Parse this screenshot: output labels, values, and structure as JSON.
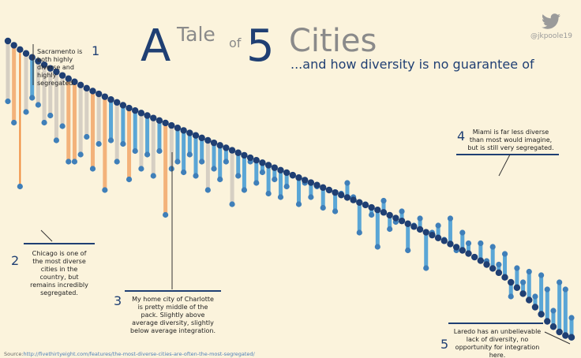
{
  "title": {
    "a": "A",
    "tale": "Tale",
    "of": "of",
    "five": "5",
    "cities": "Cities",
    "subtitle": "...and how diversity is no guarantee of"
  },
  "handle": "@jkpoole19",
  "twitter_icon": "twitter-bird-icon",
  "colors": {
    "background": "#fbf3dc",
    "top_dot": "#1f3f73",
    "diverse": "#5aa6d6",
    "segregated": "#f08a3a",
    "title_dark": "#1f3f73",
    "title_gray": "#8a8a8a"
  },
  "annotations": [
    {
      "num": "1",
      "lines": [
        "Sacramento is",
        "both highly",
        "diverse and",
        "highly",
        "segregated."
      ]
    },
    {
      "num": "2",
      "lines": [
        "Chicago is one of",
        "the most diverse",
        "cities in the",
        "country, but",
        "remains incredibly",
        "segregated."
      ]
    },
    {
      "num": "3",
      "lines": [
        "My home city of Charlotte",
        "is pretty middle of the",
        "pack. Slightly above",
        "average diversity, slightly",
        "below average integration."
      ]
    },
    {
      "num": "4",
      "lines": [
        "Miami is far less diverse",
        "than most would imagine,",
        "but is still very segregated."
      ]
    },
    {
      "num": "5",
      "lines": [
        "Laredo has an unbelievable",
        "lack of diversity, no",
        "opportunity for integration",
        "here."
      ]
    }
  ],
  "source": {
    "label": "Source:",
    "url": "http://fivethirtyeight.com/features/the-most-diverse-cities-are-often-the-most-segregated/"
  },
  "chart_data": {
    "type": "dumbbell",
    "title": "A Tale of 5 Cities",
    "subtitle": "...and how diversity is no guarantee of",
    "xlabel": "",
    "ylabel": "",
    "ylim": [
      0,
      1
    ],
    "grid": false,
    "legend": "none",
    "series": [
      {
        "name": "",
        "values": [
          0.84,
          0.828,
          0.816,
          0.805,
          0.794,
          0.783,
          0.773,
          0.763,
          0.753,
          0.743,
          0.734,
          0.725,
          0.716,
          0.707,
          0.699,
          0.691,
          0.683,
          0.675,
          0.667,
          0.659,
          0.651,
          0.644,
          0.637,
          0.63,
          0.623,
          0.616,
          0.609,
          0.602,
          0.595,
          0.588,
          0.581,
          0.574,
          0.567,
          0.56,
          0.553,
          0.546,
          0.539,
          0.532,
          0.525,
          0.518,
          0.511,
          0.504,
          0.497,
          0.49,
          0.483,
          0.476,
          0.469,
          0.462,
          0.455,
          0.448,
          0.441,
          0.434,
          0.427,
          0.42,
          0.413,
          0.406,
          0.399,
          0.392,
          0.385,
          0.378,
          0.371,
          0.364,
          0.357,
          0.349,
          0.341,
          0.333,
          0.325,
          0.317,
          0.309,
          0.301,
          0.293,
          0.285,
          0.277,
          0.268,
          0.259,
          0.25,
          0.241,
          0.231,
          0.221,
          0.21,
          0.199,
          0.187,
          0.174,
          0.16,
          0.145,
          0.128,
          0.11,
          0.09,
          0.07,
          0.05,
          0.035,
          0.02,
          0.01,
          0.005
        ]
      },
      {
        "name": "",
        "values": [
          0.67,
          0.61,
          0.43,
          0.64,
          0.68,
          0.66,
          0.61,
          0.63,
          0.56,
          0.6,
          0.5,
          0.5,
          0.52,
          0.57,
          0.48,
          0.55,
          0.42,
          0.56,
          0.5,
          0.55,
          0.45,
          0.53,
          0.48,
          0.52,
          0.46,
          0.53,
          0.35,
          0.48,
          0.5,
          0.47,
          0.52,
          0.46,
          0.5,
          0.42,
          0.48,
          0.45,
          0.5,
          0.38,
          0.46,
          0.42,
          0.5,
          0.44,
          0.47,
          0.41,
          0.45,
          0.4,
          0.43,
          0.46,
          0.38,
          0.44,
          0.4,
          0.43,
          0.37,
          0.42,
          0.36,
          0.41,
          0.44,
          0.4,
          0.3,
          0.38,
          0.35,
          0.26,
          0.39,
          0.31,
          0.33,
          0.36,
          0.25,
          0.32,
          0.34,
          0.2,
          0.3,
          0.32,
          0.28,
          0.34,
          0.25,
          0.3,
          0.27,
          0.23,
          0.27,
          0.22,
          0.26,
          0.21,
          0.24,
          0.12,
          0.2,
          0.16,
          0.19,
          0.12,
          0.18,
          0.14,
          0.08,
          0.16,
          0.14,
          0.06
        ]
      }
    ]
  }
}
